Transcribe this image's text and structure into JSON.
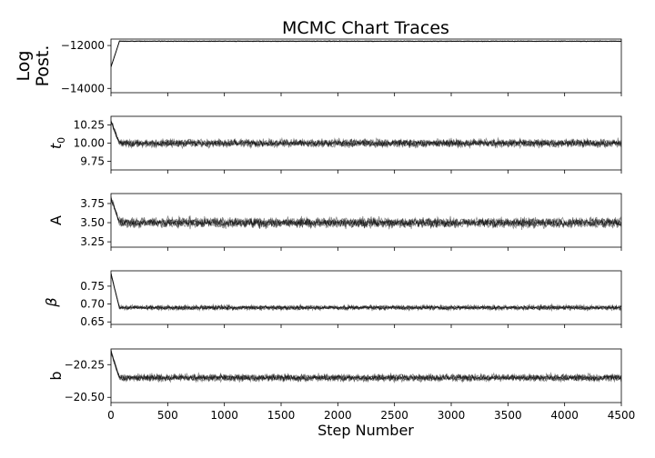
{
  "chart_data": {
    "type": "line",
    "title": "MCMC Chart Traces",
    "xlabel": "Step Number",
    "xlim": [
      0,
      4500
    ],
    "xticks": [
      "0",
      "500",
      "1000",
      "1500",
      "2000",
      "2500",
      "3000",
      "3500",
      "4000",
      "4500"
    ],
    "trace_color": "#000000",
    "panels": [
      {
        "ylabel_lines": [
          "Log",
          "Post."
        ],
        "ylim": [
          -14200,
          -11700
        ],
        "yticks": [
          -12000,
          -14000
        ],
        "ytick_labels": [
          "−12000",
          "−14000"
        ],
        "burnin_start": -13000,
        "center": -11800,
        "spread": 20
      },
      {
        "ylabel_main": "t",
        "ylabel_sub": "0",
        "ylim": [
          9.63,
          10.37
        ],
        "yticks": [
          10.25,
          10.0,
          9.75
        ],
        "ytick_labels": [
          "10.25",
          "10.00",
          "9.75"
        ],
        "burnin_start": 10.3,
        "center": 10.0,
        "spread": 0.05
      },
      {
        "ylabel_lines": [
          "A"
        ],
        "ylim": [
          3.18,
          3.88
        ],
        "yticks": [
          3.75,
          3.5,
          3.25
        ],
        "ytick_labels": [
          "3.75",
          "3.50",
          "3.25"
        ],
        "burnin_start": 3.82,
        "center": 3.5,
        "spread": 0.06
      },
      {
        "ylabel_symbol": "β",
        "ylim": [
          0.643,
          0.793
        ],
        "yticks": [
          0.75,
          0.7,
          0.65
        ],
        "ytick_labels": [
          "0.75",
          "0.70",
          "0.65"
        ],
        "burnin_start": 0.785,
        "center": 0.69,
        "spread": 0.006
      },
      {
        "ylabel_lines": [
          "b"
        ],
        "ylim": [
          -20.54,
          -20.13
        ],
        "yticks": [
          -20.25,
          -20.5
        ],
        "ytick_labels": [
          "−20.25",
          "−20.50"
        ],
        "burnin_start": -20.15,
        "center": -20.35,
        "spread": 0.025
      }
    ]
  }
}
